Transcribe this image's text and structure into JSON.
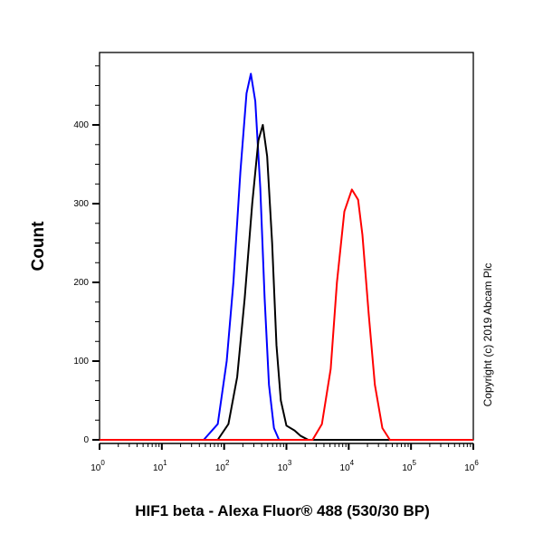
{
  "chart_data": {
    "type": "line",
    "title": "",
    "xlabel": "HIF1 beta - Alexa Fluor® 488 (530/30 BP)",
    "ylabel": "Count",
    "x_scale": "log",
    "xlim": [
      1,
      1000000
    ],
    "ylim": [
      0,
      492
    ],
    "x_ticks": [
      {
        "base": "10",
        "exp": "0"
      },
      {
        "base": "10",
        "exp": "1"
      },
      {
        "base": "10",
        "exp": "2"
      },
      {
        "base": "10",
        "exp": "3"
      },
      {
        "base": "10",
        "exp": "4"
      },
      {
        "base": "10",
        "exp": "5"
      },
      {
        "base": "10",
        "exp": "6"
      }
    ],
    "y_ticks": [
      "0",
      "100",
      "200",
      "300",
      "400"
    ],
    "grid": false,
    "annotation": "Copyright (c) 2019 Abcam Plc",
    "series": [
      {
        "color": "#0000ff",
        "x": [
          47,
          79,
          110,
          141,
          182,
          229,
          269,
          316,
          380,
          447,
          525,
          631,
          759
        ],
        "y": [
          0,
          20,
          100,
          200,
          340,
          440,
          465,
          430,
          320,
          180,
          70,
          15,
          0
        ]
      },
      {
        "color": "#000000",
        "x": [
          79,
          117,
          162,
          214,
          282,
          355,
          417,
          490,
          589,
          692,
          813,
          1000,
          1349,
          1698,
          2239
        ],
        "y": [
          0,
          20,
          80,
          180,
          300,
          380,
          400,
          360,
          250,
          120,
          50,
          18,
          12,
          5,
          0
        ]
      },
      {
        "color": "#ff0000",
        "x": [
          2630,
          3715,
          5129,
          6457,
          8511,
          11220,
          14125,
          16596,
          20893,
          26303,
          34674,
          45709
        ],
        "y": [
          0,
          20,
          90,
          200,
          290,
          318,
          305,
          260,
          160,
          70,
          15,
          0
        ]
      }
    ]
  }
}
